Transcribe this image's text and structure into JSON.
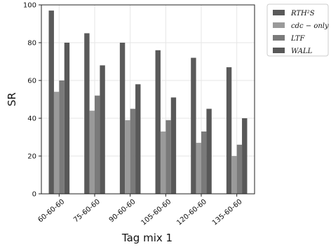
{
  "chart_data": {
    "type": "bar",
    "title": "",
    "xlabel": "Tag mix 1",
    "ylabel": "SR",
    "ylim": [
      0,
      100
    ],
    "yticks": [
      0,
      20,
      40,
      60,
      80,
      100
    ],
    "grid": true,
    "legend_position": "outside-right",
    "categories": [
      "60-60-60",
      "75-60-60",
      "90-60-60",
      "105-60-60",
      "120-60-60",
      "135-60-60"
    ],
    "series": [
      {
        "name": "RTH²S",
        "color": "#5a5a5a",
        "values": [
          97,
          85,
          80,
          76,
          72,
          67
        ]
      },
      {
        "name": "cdc − only",
        "color": "#9a9a9a",
        "values": [
          54,
          44,
          39,
          33,
          27,
          20
        ]
      },
      {
        "name": "LTF",
        "color": "#7a7a7a",
        "values": [
          60,
          52,
          45,
          39,
          33,
          26
        ]
      },
      {
        "name": "WALL",
        "color": "#585858",
        "values": [
          80,
          68,
          58,
          51,
          45,
          40
        ]
      }
    ]
  }
}
